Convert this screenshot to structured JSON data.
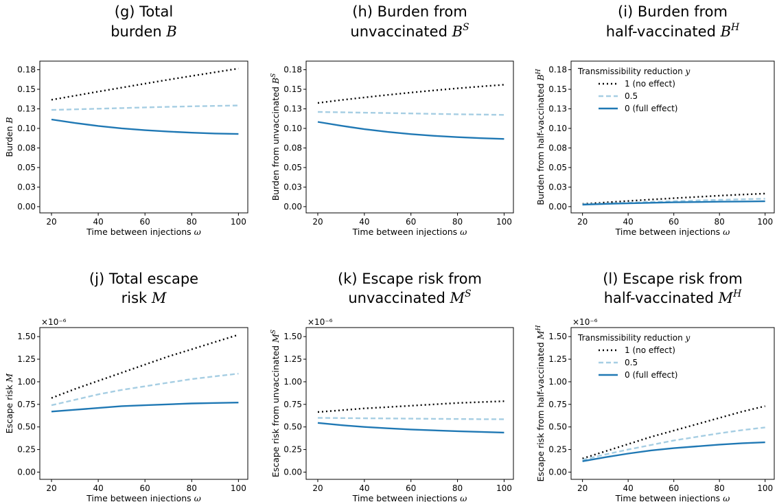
{
  "chart_data": [
    {
      "type": "line",
      "title_lines": [
        "(g) Total",
        "burden "
      ],
      "title_math": "B",
      "ylabel": "Burden ",
      "ylabel_math": "B",
      "xlabel": "Time between injections ",
      "xlabel_math": "ω",
      "xlim": [
        15,
        104
      ],
      "ylim": [
        -0.008,
        0.186
      ],
      "xticks": [
        20,
        40,
        60,
        80,
        100
      ],
      "yticks": [
        0.0,
        0.025,
        0.05,
        0.075,
        0.1,
        0.125,
        0.15,
        0.175
      ],
      "ytick_labels": [
        "0.00",
        "0.03",
        "0.05",
        "0.08",
        "0.10",
        "0.13",
        "0.15",
        "0.18"
      ],
      "exponent": "",
      "legend": null,
      "x": [
        20,
        30,
        40,
        50,
        60,
        70,
        80,
        90,
        100
      ],
      "series": [
        {
          "name": "1 (no effect)",
          "style": "dotted",
          "values": [
            0.1366,
            0.1418,
            0.147,
            0.1521,
            0.1572,
            0.1622,
            0.167,
            0.1718,
            0.1765
          ]
        },
        {
          "name": "0.5",
          "style": "dashed",
          "values": [
            0.1236,
            0.1244,
            0.1252,
            0.126,
            0.1268,
            0.1275,
            0.1282,
            0.1288,
            0.1293
          ]
        },
        {
          "name": "0 (full effect)",
          "style": "solid",
          "values": [
            0.1114,
            0.1069,
            0.1031,
            0.1001,
            0.0977,
            0.0959,
            0.0945,
            0.0935,
            0.0929
          ]
        }
      ]
    },
    {
      "type": "line",
      "title_lines": [
        "(h) Burden from",
        "unvaccinated "
      ],
      "title_math": "B",
      "title_sup": "S",
      "ylabel": "Burden from unvaccinated ",
      "ylabel_math": "B",
      "ylabel_sup": "S",
      "xlabel": "Time between injections ",
      "xlabel_math": "ω",
      "xlim": [
        15,
        104
      ],
      "ylim": [
        -0.008,
        0.186
      ],
      "xticks": [
        20,
        40,
        60,
        80,
        100
      ],
      "yticks": [
        0.0,
        0.025,
        0.05,
        0.075,
        0.1,
        0.125,
        0.15,
        0.175
      ],
      "ytick_labels": [
        "0.00",
        "0.03",
        "0.05",
        "0.08",
        "0.10",
        "0.13",
        "0.15",
        "0.18"
      ],
      "exponent": "",
      "legend": null,
      "x": [
        20,
        30,
        40,
        50,
        60,
        70,
        80,
        90,
        100
      ],
      "series": [
        {
          "name": "1 (no effect)",
          "style": "dotted",
          "values": [
            0.1325,
            0.1362,
            0.1396,
            0.1428,
            0.1458,
            0.1486,
            0.1512,
            0.1536,
            0.1558
          ]
        },
        {
          "name": "0.5",
          "style": "dashed",
          "values": [
            0.121,
            0.1206,
            0.1201,
            0.1196,
            0.1191,
            0.1186,
            0.1181,
            0.1177,
            0.1173
          ]
        },
        {
          "name": "0 (full effect)",
          "style": "solid",
          "values": [
            0.1083,
            0.1034,
            0.099,
            0.0955,
            0.0927,
            0.0905,
            0.0888,
            0.0875,
            0.0865
          ]
        }
      ]
    },
    {
      "type": "line",
      "title_lines": [
        "(i) Burden from",
        "half-vaccinated "
      ],
      "title_math": "B",
      "title_sup": "H",
      "ylabel": "Burden from half-vaccinated ",
      "ylabel_math": "B",
      "ylabel_sup": "H",
      "xlabel": "Time between injections ",
      "xlabel_math": "ω",
      "xlim": [
        15,
        104
      ],
      "ylim": [
        -0.008,
        0.186
      ],
      "xticks": [
        20,
        40,
        60,
        80,
        100
      ],
      "yticks": [
        0.0,
        0.025,
        0.05,
        0.075,
        0.1,
        0.125,
        0.15,
        0.175
      ],
      "ytick_labels": [
        "0.00",
        "0.03",
        "0.05",
        "0.08",
        "0.10",
        "0.13",
        "0.15",
        "0.18"
      ],
      "exponent": "",
      "legend": {
        "title": "Transmissibility reduction ",
        "title_math": "y",
        "placement": "upper-left"
      },
      "x": [
        20,
        30,
        40,
        50,
        60,
        70,
        80,
        90,
        100
      ],
      "series": [
        {
          "name": "1 (no effect)",
          "style": "dotted",
          "values": [
            0.0035,
            0.0053,
            0.0072,
            0.009,
            0.0108,
            0.0124,
            0.014,
            0.0154,
            0.0167
          ]
        },
        {
          "name": "0.5",
          "style": "dashed",
          "values": [
            0.003,
            0.004,
            0.005,
            0.006,
            0.007,
            0.0079,
            0.0087,
            0.0094,
            0.0101
          ]
        },
        {
          "name": "0 (full effect)",
          "style": "solid",
          "values": [
            0.0025,
            0.0035,
            0.0042,
            0.0049,
            0.0055,
            0.0059,
            0.0063,
            0.0066,
            0.0068
          ]
        }
      ]
    },
    {
      "type": "line",
      "title_lines": [
        "(j) Total escape",
        "risk "
      ],
      "title_math": "M",
      "ylabel": "Escape risk ",
      "ylabel_math": "M",
      "xlabel": "Time between injections ",
      "xlabel_math": "ω",
      "xlim": [
        15,
        104
      ],
      "ylim": [
        -0.08,
        1.6
      ],
      "xticks": [
        20,
        40,
        60,
        80,
        100
      ],
      "yticks": [
        0.0,
        0.25,
        0.5,
        0.75,
        1.0,
        1.25,
        1.5
      ],
      "ytick_labels": [
        "0.00",
        "0.25",
        "0.50",
        "0.75",
        "1.00",
        "1.25",
        "1.50"
      ],
      "exponent": "×10⁻⁶",
      "legend": null,
      "x": [
        20,
        30,
        40,
        50,
        60,
        70,
        80,
        90,
        100
      ],
      "series": [
        {
          "name": "1 (no effect)",
          "style": "dotted",
          "values": [
            0.82,
            0.92,
            1.01,
            1.1,
            1.19,
            1.28,
            1.36,
            1.44,
            1.52
          ]
        },
        {
          "name": "0.5",
          "style": "dashed",
          "values": [
            0.74,
            0.8,
            0.86,
            0.91,
            0.95,
            0.99,
            1.03,
            1.06,
            1.09
          ]
        },
        {
          "name": "0 (full effect)",
          "style": "solid",
          "values": [
            0.67,
            0.69,
            0.71,
            0.73,
            0.74,
            0.75,
            0.76,
            0.765,
            0.77
          ]
        }
      ]
    },
    {
      "type": "line",
      "title_lines": [
        "(k) Escape risk from",
        "unvaccinated "
      ],
      "title_math": "M",
      "title_sup": "S",
      "ylabel": "Escape risk from unvaccinated ",
      "ylabel_math": "M",
      "ylabel_sup": "S",
      "xlabel": "Time between injections ",
      "xlabel_math": "ω",
      "xlim": [
        15,
        104
      ],
      "ylim": [
        -0.08,
        1.6
      ],
      "xticks": [
        20,
        40,
        60,
        80,
        100
      ],
      "yticks": [
        0.0,
        0.25,
        0.5,
        0.75,
        1.0,
        1.25,
        1.5
      ],
      "ytick_labels": [
        "0.00",
        "0.25",
        "0.50",
        "0.75",
        "1.00",
        "1.25",
        "1.50"
      ],
      "exponent": "×10⁻⁶",
      "legend": null,
      "x": [
        20,
        30,
        40,
        50,
        60,
        70,
        80,
        90,
        100
      ],
      "series": [
        {
          "name": "1 (no effect)",
          "style": "dotted",
          "values": [
            0.665,
            0.685,
            0.705,
            0.72,
            0.735,
            0.75,
            0.765,
            0.775,
            0.785
          ]
        },
        {
          "name": "0.5",
          "style": "dashed",
          "values": [
            0.6,
            0.598,
            0.596,
            0.594,
            0.592,
            0.59,
            0.588,
            0.586,
            0.585
          ]
        },
        {
          "name": "0 (full effect)",
          "style": "solid",
          "values": [
            0.545,
            0.52,
            0.5,
            0.485,
            0.472,
            0.462,
            0.453,
            0.445,
            0.438
          ]
        }
      ]
    },
    {
      "type": "line",
      "title_lines": [
        "(l) Escape risk from",
        "half-vaccinated "
      ],
      "title_math": "M",
      "title_sup": "H",
      "ylabel": "Escape risk from half-vaccinated ",
      "ylabel_math": "M",
      "ylabel_sup": "H",
      "xlabel": "Time between injections ",
      "xlabel_math": "ω",
      "xlim": [
        15,
        104
      ],
      "ylim": [
        -0.08,
        1.6
      ],
      "xticks": [
        20,
        40,
        60,
        80,
        100
      ],
      "yticks": [
        0.0,
        0.25,
        0.5,
        0.75,
        1.0,
        1.25,
        1.5
      ],
      "ytick_labels": [
        "0.00",
        "0.25",
        "0.50",
        "0.75",
        "1.00",
        "1.25",
        "1.50"
      ],
      "exponent": "×10⁻⁶",
      "legend": {
        "title": "Transmissibility reduction ",
        "title_math": "y",
        "placement": "upper-left"
      },
      "x": [
        20,
        30,
        40,
        50,
        60,
        70,
        80,
        90,
        100
      ],
      "series": [
        {
          "name": "1 (no effect)",
          "style": "dotted",
          "values": [
            0.15,
            0.23,
            0.31,
            0.39,
            0.46,
            0.53,
            0.6,
            0.67,
            0.73
          ]
        },
        {
          "name": "0.5",
          "style": "dashed",
          "values": [
            0.135,
            0.195,
            0.25,
            0.3,
            0.35,
            0.39,
            0.43,
            0.465,
            0.495
          ]
        },
        {
          "name": "0 (full effect)",
          "style": "solid",
          "values": [
            0.12,
            0.165,
            0.205,
            0.24,
            0.265,
            0.285,
            0.305,
            0.32,
            0.33
          ]
        }
      ]
    }
  ],
  "colors": {
    "dotted": "#000000",
    "dashed": "#a6cee3",
    "solid": "#1f78b4"
  }
}
